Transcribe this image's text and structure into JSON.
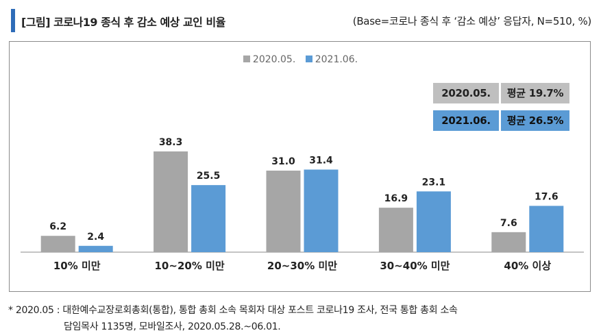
{
  "header": {
    "title": "[그림] 코로나19 종식 후 감소 예상 교인 비율",
    "base_note": "(Base=코로나 종식 후 ‘감소 예상’ 응답자, N=510, %)"
  },
  "legend": [
    {
      "label": "2020.05.",
      "color": "#a6a6a6"
    },
    {
      "label": "2021.06.",
      "color": "#5b9bd5"
    }
  ],
  "averages": [
    {
      "year": "2020.05.",
      "text": "평균 19.7%",
      "color": "#bfbfbf"
    },
    {
      "year": "2021.06.",
      "text": "평균 26.5%",
      "color": "#5b9bd5"
    }
  ],
  "chart_data": {
    "type": "bar",
    "title": "[그림] 코로나19 종식 후 감소 예상 교인 비율",
    "categories": [
      "10% 미만",
      "10~20% 미만",
      "20~30% 미만",
      "30~40% 미만",
      "40% 이상"
    ],
    "series": [
      {
        "name": "2020.05.",
        "color": "#a6a6a6",
        "values": [
          6.2,
          38.3,
          31.0,
          16.9,
          7.6
        ]
      },
      {
        "name": "2021.06.",
        "color": "#5b9bd5",
        "values": [
          2.4,
          25.5,
          31.4,
          23.1,
          17.6
        ]
      }
    ],
    "ylim": [
      0,
      40
    ],
    "grid": false,
    "legend_position": "top"
  },
  "footnote": {
    "line1": "* 2020.05 : 대한예수교장로회총회(통합), 통합 총회 소속 목회자 대상 포스트 코로나19 조사, 전국 통합 총회 소속",
    "line2": "담임목사 1135명, 모바일조사, 2020.05.28.~06.01."
  }
}
